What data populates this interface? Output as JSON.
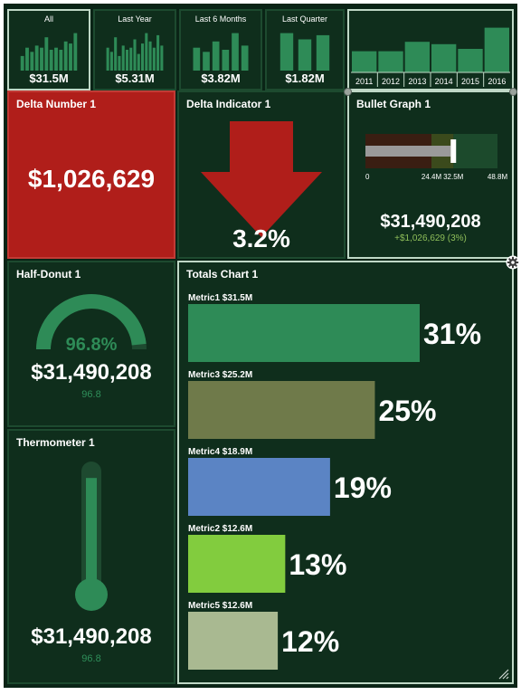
{
  "periods": [
    {
      "label": "All",
      "value": "$31.5M",
      "selected": true,
      "bars": [
        0.35,
        0.55,
        0.45,
        0.6,
        0.55,
        0.8,
        0.5,
        0.55,
        0.5,
        0.7,
        0.65,
        0.9
      ]
    },
    {
      "label": "Last Year",
      "value": "$5.31M",
      "selected": false,
      "bars": [
        0.55,
        0.45,
        0.8,
        0.35,
        0.6,
        0.5,
        0.55,
        0.75,
        0.4,
        0.65,
        0.9,
        0.7,
        0.55,
        0.85,
        0.6
      ]
    },
    {
      "label": "Last 6 Months",
      "value": "$3.82M",
      "selected": false,
      "bars": [
        0.55,
        0.45,
        0.7,
        0.5,
        0.9,
        0.6
      ]
    },
    {
      "label": "Last Quarter",
      "value": "$1.82M",
      "selected": false,
      "bars": [
        0.9,
        0.75,
        0.85
      ]
    }
  ],
  "years": {
    "labels": [
      "2011",
      "2012",
      "2013",
      "2014",
      "2015",
      "2016"
    ],
    "levels": [
      0.45,
      0.45,
      0.65,
      0.6,
      0.5,
      0.95
    ]
  },
  "delta_number": {
    "title": "Delta Number 1",
    "value": "$1,026,629",
    "bg": "#b01e1a"
  },
  "delta_indicator": {
    "title": "Delta Indicator 1",
    "value": "3.2%",
    "arrow_color": "#b01e1a"
  },
  "bullet": {
    "title": "Bullet Graph 1",
    "ticks": [
      "0",
      "24.4M",
      "32.5M",
      "48.8M"
    ],
    "actual": 31490208,
    "target": 32500000,
    "max": 48800000,
    "value": "$31,490,208",
    "delta": "+$1,026,629 (3%)",
    "delta_color": "#8fbf5a"
  },
  "half_donut": {
    "title": "Half-Donut 1",
    "percent": 96.8,
    "percent_label": "96.8%",
    "value": "$31,490,208",
    "sub": "96.8"
  },
  "thermometer": {
    "title": "Thermometer 1",
    "level": 0.968,
    "value": "$31,490,208",
    "sub": "96.8"
  },
  "totals": {
    "title": "Totals Chart 1",
    "items": [
      {
        "name": "Metric1",
        "amount": "$31.5M",
        "pct": "31%",
        "share": 31,
        "color": "#2e8b57"
      },
      {
        "name": "Metric3",
        "amount": "$25.2M",
        "pct": "25%",
        "share": 25,
        "color": "#6f7a4a"
      },
      {
        "name": "Metric4",
        "amount": "$18.9M",
        "pct": "19%",
        "share": 19,
        "color": "#5b84c4"
      },
      {
        "name": "Metric2",
        "amount": "$12.6M",
        "pct": "13%",
        "share": 13,
        "color": "#82cc3e"
      },
      {
        "name": "Metric5",
        "amount": "$12.6M",
        "pct": "12%",
        "share": 12,
        "color": "#a9b991"
      }
    ]
  },
  "icons": {
    "settings": "gear-icon",
    "resize": "resize-handle-icon"
  }
}
